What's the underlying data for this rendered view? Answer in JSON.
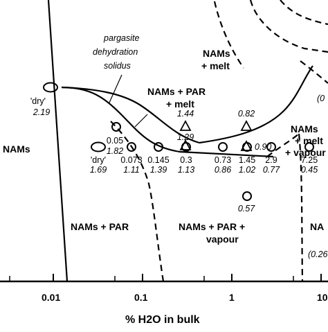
{
  "chart_data": {
    "type": "scatter",
    "xscale": "log",
    "xlabel": "% H2O in bulk",
    "xticks": [
      "0.01",
      "0.1",
      "1",
      "10"
    ],
    "fields": [
      "NAMs",
      "NAMs + PAR",
      "NAMs + PAR + vapour",
      "NAMs + PAR + melt",
      "NAMs + melt",
      "NAMs + melt + vapour",
      "NA"
    ],
    "curve_label": [
      "pargasite",
      "dehydration",
      "solidus"
    ],
    "cut_labels": [
      "(0",
      "(0.26"
    ],
    "row_points": [
      {
        "top": "'dry'",
        "bottom": "1.69"
      },
      {
        "top": "0.073",
        "bottom": "1.11"
      },
      {
        "top": "0.145",
        "bottom": "1.39"
      },
      {
        "top": "0.3",
        "bottom": "1.13"
      },
      {
        "top": "0.73",
        "bottom": "0.86"
      },
      {
        "top": "1.45",
        "bottom": "1.02"
      },
      {
        "top": "2.9",
        "bottom": "0.77"
      },
      {
        "top": "7.25",
        "bottom": "0.45"
      }
    ],
    "other_points": [
      {
        "id": "dry-upper",
        "top": "'dry'",
        "bottom": "2.19"
      },
      {
        "id": "upper-circle",
        "top": "0.05",
        "bottom": "1.82"
      },
      {
        "id": "low-circle",
        "top": "",
        "bottom": "0.57"
      }
    ],
    "triangles": [
      {
        "id": "tri-a",
        "text": "1.44"
      },
      {
        "id": "tri-b",
        "text": "1.29"
      },
      {
        "id": "tri-c",
        "text": "0.82"
      },
      {
        "id": "tri-d",
        "text": "0.90"
      }
    ]
  }
}
